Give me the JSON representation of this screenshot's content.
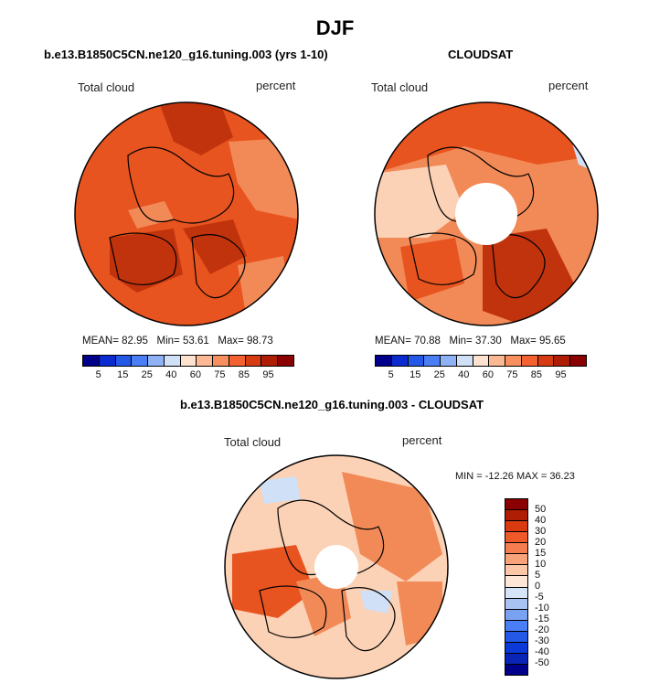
{
  "title": "DJF",
  "panels": [
    {
      "id": "model",
      "header": "b.e13.B1850C5CN.ne120_g16.tuning.003 (yrs 1-10)",
      "variable": "Total cloud",
      "units": "percent",
      "stats": {
        "mean_label": "MEAN=",
        "mean": "82.95",
        "min_label": "Min=",
        "min": "53.61",
        "max_label": "Max=",
        "max": "98.73"
      }
    },
    {
      "id": "cloudsat",
      "header": "CLOUDSAT",
      "variable": "Total cloud",
      "units": "percent",
      "stats": {
        "mean_label": "MEAN=",
        "mean": "70.88",
        "min_label": "Min=",
        "min": "37.30",
        "max_label": "Max=",
        "max": "95.65"
      }
    },
    {
      "id": "difference",
      "header": "b.e13.B1850C5CN.ne120_g16.tuning.003 - CLOUDSAT",
      "variable": "Total cloud",
      "units": "percent",
      "stats_text": "MIN = -12.26 MAX =  36.23"
    }
  ],
  "abs_colorbar": {
    "colors": [
      "#00008b",
      "#0a2bd0",
      "#2459e8",
      "#4a7ef5",
      "#8fb2f6",
      "#cfe0f7",
      "#fde2cf",
      "#fbb892",
      "#f88f5e",
      "#f2612f",
      "#d63b12",
      "#b01d05",
      "#8b0000"
    ],
    "labels": [
      "5",
      "15",
      "25",
      "40",
      "60",
      "75",
      "85",
      "95"
    ]
  },
  "diff_colorbar": {
    "colors": [
      "#00008b",
      "#0a24b8",
      "#0b3ad9",
      "#2459e8",
      "#4a7ef5",
      "#7aa2f3",
      "#a8c2f2",
      "#d6e4f7",
      "#fde6d6",
      "#fcc7a6",
      "#f9a37a",
      "#f67d50",
      "#f05a2a",
      "#d93a10",
      "#b01d05",
      "#8b0000"
    ],
    "labels": [
      "50",
      "40",
      "30",
      "20",
      "15",
      "10",
      "5",
      "0",
      "-5",
      "-10",
      "-15",
      "-20",
      "-30",
      "-40",
      "-50"
    ]
  },
  "palette": {
    "ocean_high": "#e8541f",
    "land_dark": "#c1330c",
    "land_light": "#f28a58",
    "pale": "#fcd2b6",
    "white": "#ffffff",
    "blue_light": "#cfe0f7"
  }
}
